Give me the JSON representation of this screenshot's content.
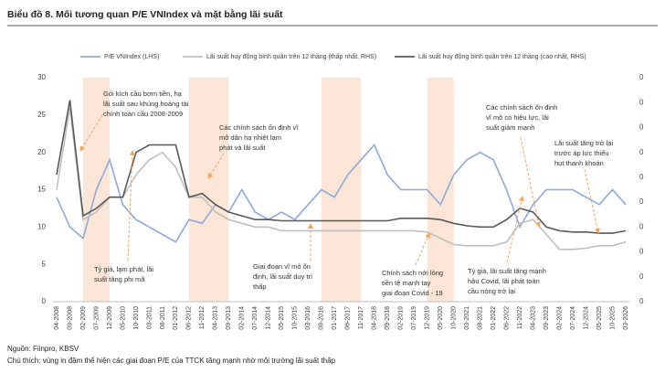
{
  "chart_data": {
    "type": "line",
    "title": "Biểu đồ 8. Mối tương quan P/E VNIndex và mặt bằng lãi suất",
    "source": "Nguồn: Fiinpro, KBSV",
    "note": "Chú thích: vùng in đậm thể hiện các giai đoạn P/E của TTCK tăng mạnh nhờ môi trường lãi suất thấp",
    "categories": [
      "04-2008",
      "09-2008",
      "02-2009",
      "07-2009",
      "12-2009",
      "05-2010",
      "10-2010",
      "03-2011",
      "08-2011",
      "01-2012",
      "06-2012",
      "11-2012",
      "04-2013",
      "09-2013",
      "02-2014",
      "07-2014",
      "12-2014",
      "05-2015",
      "10-2015",
      "03-2016",
      "08-2016",
      "01-2017",
      "06-2017",
      "11-2017",
      "04-2018",
      "09-2018",
      "02-2019",
      "07-2019",
      "12-2019",
      "05-2020",
      "10-2020",
      "03-2021",
      "08-2021",
      "01-2022",
      "06-2022",
      "11-2022",
      "04-2023",
      "09-2023",
      "02-2024",
      "07-2024",
      "12-2024",
      "05-2025",
      "10-2025",
      "03-2026"
    ],
    "series": [
      {
        "name": "P/E VNIndex (LHS)",
        "color": "#8eaadb",
        "axis": "y",
        "values": [
          14,
          10,
          8.5,
          15,
          19,
          13,
          11,
          10,
          9,
          8,
          11,
          10.5,
          13,
          12,
          15,
          12,
          11,
          12,
          11,
          13,
          15,
          14,
          17,
          19,
          21,
          17,
          15,
          15,
          15,
          13,
          17,
          19,
          20,
          19,
          15,
          10,
          13,
          15,
          15,
          15,
          14,
          13,
          15,
          13
        ]
      },
      {
        "name": "Lãi suất huy động bình quân trên 12 tháng (thấp nhất, RHS)",
        "color": "#bfbfbf",
        "axis": "y2",
        "values": [
          0.09,
          0.156,
          0.066,
          0.072,
          0.084,
          0.084,
          0.102,
          0.114,
          0.12,
          0.108,
          0.084,
          0.084,
          0.072,
          0.066,
          0.063,
          0.06,
          0.06,
          0.057,
          0.057,
          0.057,
          0.057,
          0.057,
          0.057,
          0.057,
          0.057,
          0.057,
          0.057,
          0.057,
          0.056,
          0.051,
          0.046,
          0.045,
          0.045,
          0.045,
          0.048,
          0.063,
          0.066,
          0.054,
          0.042,
          0.042,
          0.043,
          0.045,
          0.045,
          0.048
        ]
      },
      {
        "name": "Lãi suất huy động bình quân trên 12 tháng (cao nhất, RHS)",
        "color": "#595959",
        "axis": "y2",
        "values": [
          0.102,
          0.162,
          0.069,
          0.075,
          0.084,
          0.084,
          0.12,
          0.126,
          0.126,
          0.126,
          0.084,
          0.087,
          0.078,
          0.072,
          0.069,
          0.066,
          0.066,
          0.065,
          0.065,
          0.065,
          0.065,
          0.065,
          0.065,
          0.065,
          0.065,
          0.065,
          0.067,
          0.067,
          0.067,
          0.066,
          0.063,
          0.061,
          0.06,
          0.06,
          0.066,
          0.075,
          0.072,
          0.06,
          0.057,
          0.056,
          0.056,
          0.055,
          0.055,
          0.057
        ]
      }
    ],
    "ylim": [
      0,
      30
    ],
    "yticks": [
      0,
      5,
      10,
      15,
      20,
      25,
      30
    ],
    "y2lim": [
      0,
      0.18
    ],
    "y2ticks": [
      0,
      {
        "value": 0.02,
        "label": "0"
      },
      {
        "value": 0.04,
        "label": "0"
      },
      {
        "value": 0.06,
        "label": "0"
      },
      {
        "value": 0.08,
        "label": "0"
      },
      {
        "value": 0.1,
        "label": "0"
      },
      {
        "value": 0.12,
        "label": "0"
      },
      {
        "value": 0.14,
        "label": "0"
      },
      {
        "value": 0.16,
        "label": "0"
      },
      {
        "value": 0.18,
        "label": "0"
      }
    ],
    "highlights": [
      {
        "start": "02-2009",
        "end": "12-2009"
      },
      {
        "start": "06-2012",
        "end": "09-2013"
      },
      {
        "start": "08-2016",
        "end": "11-2017"
      },
      {
        "start": "12-2019",
        "end": "10-2020"
      }
    ],
    "highlight_color": "#fbe5d6",
    "legend": "top",
    "annotations": [
      {
        "lines": [
          "Gói kích cầu bơm tiền, hạ",
          "lãi suất sau khủng hoảng tài",
          "chính toàn cầu 2008-2009"
        ]
      },
      {
        "lines": [
          "Các chính sách ổn định vĩ",
          "mô dân hạ nhiệt lạm",
          "phát và lãi suất"
        ]
      },
      {
        "lines": [
          "Tỷ giá, lạm phát, lãi",
          "suất tăng phi mã"
        ]
      },
      {
        "lines": [
          "Giai đoạn vĩ mô ổn",
          "định, lãi suất duy trì",
          "thấp"
        ]
      },
      {
        "lines": [
          "Chính sách nới lỏng",
          "tiền tệ mạnh tay",
          "giai đoạn Covid - 19"
        ]
      },
      {
        "lines": [
          "Tỷ giá, lãi suất tăng mạnh",
          "hậu Covid, lãi phát toàn",
          "cầu nóng trở lại"
        ]
      },
      {
        "lines": [
          "Các chính sách ổn định",
          "vĩ mô có hiệu lực, lãi",
          "suất giảm mạnh"
        ]
      },
      {
        "lines": [
          "Lãi suất tăng trở lại",
          "trước áp lực thiếu",
          "hụt thanh khoản"
        ]
      }
    ]
  }
}
